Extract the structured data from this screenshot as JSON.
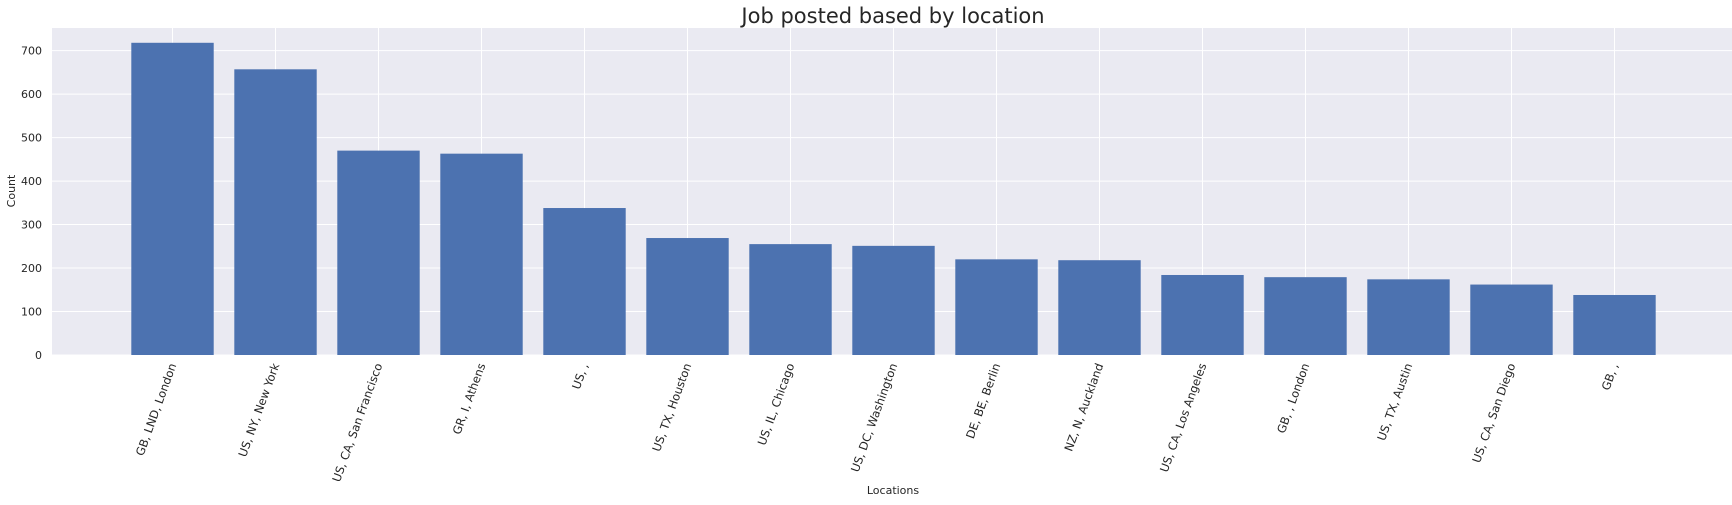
{
  "chart_data": {
    "type": "bar",
    "title": "Job posted based by location",
    "xlabel": "Locations",
    "ylabel": "Count",
    "categories": [
      "GB, LND, London",
      "US, NY, New York",
      "US, CA, San Francisco",
      "GR, I, Athens",
      "US, ,",
      "US, TX, Houston",
      "US, IL, Chicago",
      "US, DC, Washington",
      "DE, BE, Berlin",
      "NZ, N, Auckland",
      "US, CA, Los Angeles",
      "GB, , London",
      "US, TX, Austin",
      "US, CA, San Diego",
      "GB, ,"
    ],
    "values": [
      718,
      657,
      470,
      463,
      338,
      269,
      255,
      251,
      220,
      218,
      184,
      179,
      174,
      162,
      138
    ],
    "ylim": [
      0,
      752
    ],
    "yticks": [
      0,
      100,
      200,
      300,
      400,
      500,
      600,
      700
    ],
    "grid": true,
    "colors": {
      "bar": "#4c72b0",
      "plot_bg": "#eaeaf2",
      "grid": "#ffffff",
      "text": "#262626"
    }
  }
}
